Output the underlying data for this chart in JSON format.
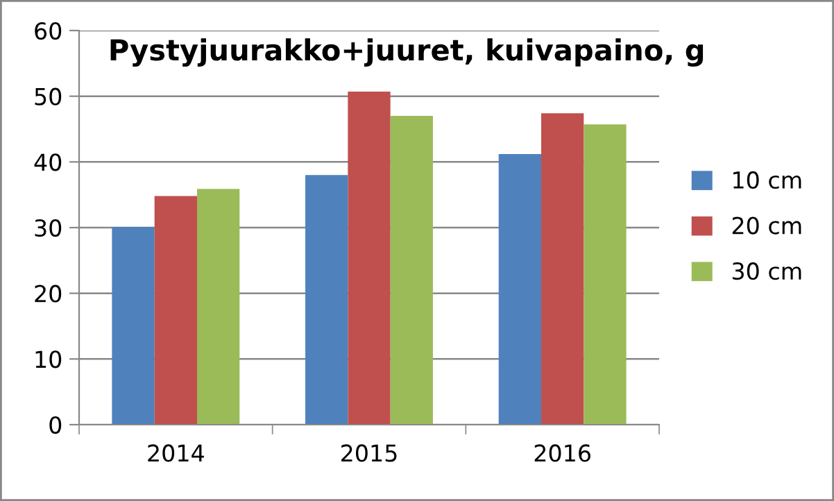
{
  "chart_data": {
    "type": "bar",
    "title": "Pystyjuurakko+juuret, kuivapaino, g",
    "categories": [
      "2014",
      "2015",
      "2016"
    ],
    "series": [
      {
        "name": "10 cm",
        "color": "#4f81bd",
        "values": [
          30.1,
          38.0,
          41.2
        ]
      },
      {
        "name": "20 cm",
        "color": "#c0504d",
        "values": [
          34.8,
          50.7,
          47.4
        ]
      },
      {
        "name": "30 cm",
        "color": "#9bbb59",
        "values": [
          35.9,
          47.0,
          45.7
        ]
      }
    ],
    "ylim": [
      0,
      60
    ],
    "yticks": [
      0,
      10,
      20,
      30,
      40,
      50,
      60
    ],
    "grid": "y",
    "legend": "right"
  }
}
